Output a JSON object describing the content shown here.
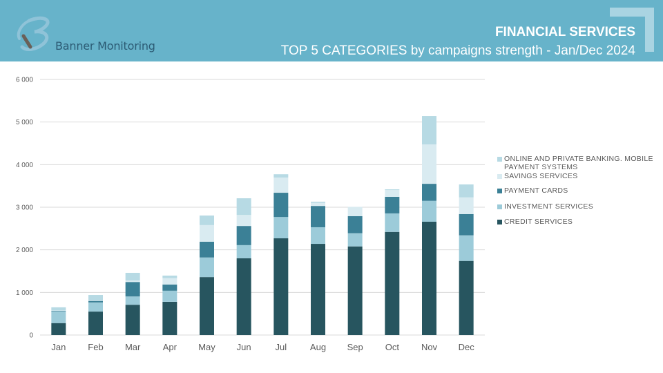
{
  "header": {
    "brand": "Banner Monitoring",
    "title": "FINANCIAL SERVICES",
    "subtitle": "TOP 5 CATEGORIES by campaigns strength - Jan/Dec 2024",
    "colors": {
      "banner": "#67b3ca",
      "accent": "#a9d4e2"
    }
  },
  "chart_data": {
    "type": "bar",
    "stacked": true,
    "title": "TOP 5 CATEGORIES by campaigns strength - Jan/Dec 2024",
    "xlabel": "",
    "ylabel": "",
    "ylim": [
      0,
      6000
    ],
    "yticks": [
      0,
      1000,
      2000,
      3000,
      4000,
      5000,
      6000
    ],
    "ytick_labels": [
      "0",
      "1 000",
      "2 000",
      "3 000",
      "4 000",
      "5 000",
      "6 000"
    ],
    "grid": true,
    "legend_position": "right",
    "categories": [
      "Jan",
      "Feb",
      "Mar",
      "Apr",
      "May",
      "Jun",
      "Jul",
      "Aug",
      "Sep",
      "Oct",
      "Nov",
      "Dec"
    ],
    "series": [
      {
        "name": "CREDIT SERVICES",
        "color": "#27555f",
        "values": [
          280,
          550,
          710,
          780,
          1360,
          1800,
          2270,
          2140,
          2080,
          2420,
          2660,
          1740
        ]
      },
      {
        "name": "INVESTMENT SERVICES",
        "color": "#9ccbd9",
        "values": [
          270,
          215,
          195,
          260,
          460,
          310,
          500,
          390,
          310,
          435,
          490,
          600
        ]
      },
      {
        "name": "PAYMENT CARDS",
        "color": "#3b8096",
        "values": [
          15,
          35,
          340,
          145,
          370,
          450,
          570,
          500,
          400,
          390,
          400,
          500
        ]
      },
      {
        "name": "SAVINGS SERVICES",
        "color": "#d9ebf1",
        "values": [
          10,
          10,
          35,
          150,
          390,
          260,
          355,
          75,
          220,
          160,
          925,
          390
        ]
      },
      {
        "name": "ONLINE AND PRIVATE BANKING. MOBILE PAYMENT SYSTEMS",
        "color": "#b7dae4",
        "values": [
          75,
          130,
          180,
          60,
          225,
          390,
          80,
          25,
          0,
          15,
          665,
          305
        ]
      }
    ]
  }
}
